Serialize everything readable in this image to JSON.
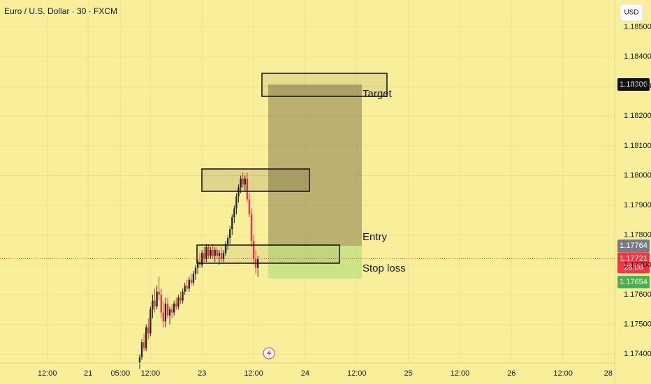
{
  "chart_data": {
    "type": "candlestick",
    "title": "Euro / U.S. Dollar · 30 · FXCM",
    "currency": "USD",
    "x": [
      -29,
      -28,
      -27,
      -26,
      -25,
      -24,
      -23,
      -22,
      -21,
      -20,
      -19,
      -18,
      -17,
      -16,
      -15,
      -14,
      -13,
      -12,
      -11,
      -10,
      -9,
      -8,
      -7,
      -6,
      -5,
      -4,
      -3,
      -2,
      -1,
      0,
      1,
      2,
      3,
      4,
      5,
      6,
      7,
      8,
      9,
      10,
      11,
      12,
      13,
      14,
      15,
      16,
      17,
      18,
      19,
      20,
      21,
      22,
      23,
      24,
      25,
      26
    ],
    "open": [
      1.1737,
      1.1739,
      1.1744,
      1.1742,
      1.1749,
      1.1747,
      1.1755,
      1.1758,
      1.1756,
      1.1761,
      1.176,
      1.1754,
      1.1751,
      1.1757,
      1.1753,
      1.1755,
      1.1754,
      1.1757,
      1.1756,
      1.1759,
      1.1758,
      1.1761,
      1.1763,
      1.1762,
      1.1765,
      1.1764,
      1.1767,
      1.1769,
      1.1771,
      1.177,
      1.1774,
      1.1772,
      1.1776,
      1.1773,
      1.1775,
      1.1773,
      1.1775,
      1.1773,
      1.1774,
      1.1772,
      1.1774,
      1.1777,
      1.1779,
      1.1782,
      1.1786,
      1.1789,
      1.1793,
      1.1796,
      1.1799,
      1.1797,
      1.1799,
      1.1792,
      1.1787,
      1.1778,
      1.1772,
      1.1769
    ],
    "high": [
      1.174,
      1.1745,
      1.1747,
      1.175,
      1.1752,
      1.1756,
      1.176,
      1.1762,
      1.1763,
      1.1766,
      1.1762,
      1.1758,
      1.1759,
      1.1759,
      1.1756,
      1.1757,
      1.1758,
      1.1759,
      1.176,
      1.1761,
      1.1762,
      1.1764,
      1.1765,
      1.1766,
      1.1767,
      1.1768,
      1.177,
      1.1772,
      1.1774,
      1.1775,
      1.1776,
      1.1777,
      1.1777,
      1.1776,
      1.1777,
      1.1776,
      1.1776,
      1.1775,
      1.1776,
      1.1775,
      1.1778,
      1.178,
      1.1783,
      1.1787,
      1.179,
      1.1794,
      1.1797,
      1.18,
      1.1801,
      1.18,
      1.1801,
      1.1794,
      1.1789,
      1.178,
      1.1775,
      1.1773
    ],
    "low": [
      1.1735,
      1.1738,
      1.1741,
      1.1741,
      1.1745,
      1.1746,
      1.1752,
      1.1754,
      1.1755,
      1.1758,
      1.1752,
      1.1749,
      1.1749,
      1.1752,
      1.175,
      1.1752,
      1.1753,
      1.1755,
      1.1755,
      1.1757,
      1.1757,
      1.176,
      1.1761,
      1.1761,
      1.1763,
      1.1763,
      1.1765,
      1.1767,
      1.1769,
      1.1769,
      1.1771,
      1.1771,
      1.1772,
      1.1772,
      1.1772,
      1.1771,
      1.1772,
      1.177,
      1.1771,
      1.1771,
      1.1773,
      1.1775,
      1.1777,
      1.178,
      1.1784,
      1.1787,
      1.1791,
      1.1794,
      1.1796,
      1.1795,
      1.1791,
      1.1786,
      1.1776,
      1.177,
      1.1767,
      1.1766
    ],
    "close": [
      1.1739,
      1.1744,
      1.1742,
      1.1749,
      1.1747,
      1.1755,
      1.1758,
      1.1756,
      1.1761,
      1.176,
      1.1754,
      1.1751,
      1.1757,
      1.1753,
      1.1755,
      1.1754,
      1.1757,
      1.1756,
      1.1759,
      1.1758,
      1.1761,
      1.1763,
      1.1762,
      1.1765,
      1.1764,
      1.1767,
      1.1769,
      1.1771,
      1.177,
      1.1774,
      1.1772,
      1.1776,
      1.1773,
      1.1775,
      1.1773,
      1.1775,
      1.1773,
      1.1774,
      1.1772,
      1.1774,
      1.1777,
      1.1779,
      1.1782,
      1.1786,
      1.1789,
      1.1793,
      1.1796,
      1.1799,
      1.1797,
      1.1799,
      1.1792,
      1.1787,
      1.1778,
      1.1772,
      1.1769,
      1.1772
    ],
    "up_color": "#1f2a2a",
    "down_color": "#f23645",
    "xlim": [
      -94,
      192
    ],
    "xticks": [
      {
        "value": -72,
        "label": "12:00"
      },
      {
        "value": -53,
        "label": "21"
      },
      {
        "value": -38,
        "label": "05:00"
      },
      {
        "value": -24,
        "label": "12:00"
      },
      {
        "value": 0,
        "label": "23"
      },
      {
        "value": 24,
        "label": "12:00"
      },
      {
        "value": 48,
        "label": "24"
      },
      {
        "value": 72,
        "label": "12:00"
      },
      {
        "value": 96,
        "label": "25"
      },
      {
        "value": 120,
        "label": "12:00"
      },
      {
        "value": 144,
        "label": "26"
      },
      {
        "value": 168,
        "label": "12:00"
      },
      {
        "value": 189,
        "label": "28"
      }
    ],
    "ylim": [
      1.1737,
      1.1859
    ],
    "yticks": [
      {
        "value": 1.174,
        "label": "1.17400"
      },
      {
        "value": 1.175,
        "label": "1.17500"
      },
      {
        "value": 1.176,
        "label": "1.17600"
      },
      {
        "value": 1.177,
        "label": "1.17700"
      },
      {
        "value": 1.178,
        "label": "1.17800"
      },
      {
        "value": 1.179,
        "label": "1.17900"
      },
      {
        "value": 1.18,
        "label": "1.18000"
      },
      {
        "value": 1.181,
        "label": "1.18100"
      },
      {
        "value": 1.182,
        "label": "1.18200"
      },
      {
        "value": 1.183,
        "label": "1.18300"
      },
      {
        "value": 1.184,
        "label": "1.18400"
      },
      {
        "value": 1.185,
        "label": "1.18500"
      }
    ],
    "grid": true,
    "position": {
      "target": 1.18306,
      "entry": 1.17764,
      "stop": 1.17654,
      "target_label": "Target",
      "entry_label": "Entry",
      "stop_label": "Stop loss"
    },
    "last_price": 1.17721,
    "countdown": "26:06"
  }
}
